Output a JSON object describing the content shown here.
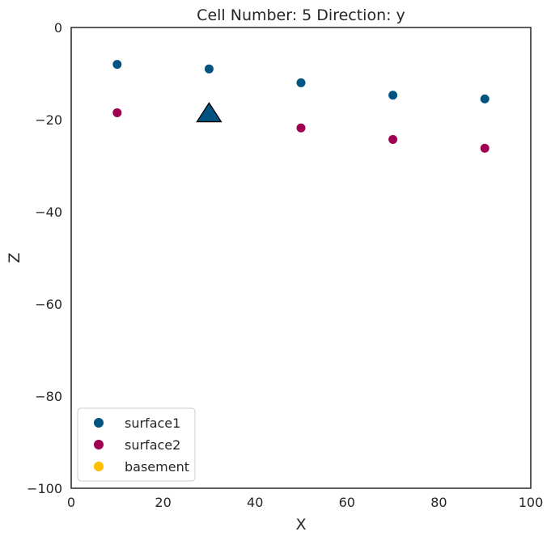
{
  "chart_data": {
    "type": "scatter",
    "title": "Cell Number: 5 Direction: y",
    "xlabel": "X",
    "ylabel": "Z",
    "xlim": [
      0,
      100
    ],
    "ylim": [
      -100,
      0
    ],
    "x_ticks": [
      "0",
      "20",
      "40",
      "60",
      "80",
      "100"
    ],
    "y_ticks": [
      "0",
      "−20",
      "−40",
      "−60",
      "−80",
      "−100"
    ],
    "grid": false,
    "legend_position": "lower-left",
    "series": [
      {
        "name": "surface1",
        "color": "#015482",
        "points": [
          [
            10,
            -8
          ],
          [
            30,
            -9
          ],
          [
            50,
            -12
          ],
          [
            70,
            -14.7
          ],
          [
            90,
            -15.5
          ]
        ]
      },
      {
        "name": "surface2",
        "color": "#9f0052",
        "points": [
          [
            10,
            -18.5
          ],
          [
            50,
            -21.8
          ],
          [
            70,
            -24.3
          ],
          [
            90,
            -26.2
          ]
        ]
      },
      {
        "name": "basement",
        "color": "#ffbe00",
        "points": []
      }
    ],
    "orientations": [
      {
        "series": "surface1",
        "x": 30,
        "y": -19,
        "marker": "triangle-up",
        "color": "#015482"
      }
    ]
  }
}
